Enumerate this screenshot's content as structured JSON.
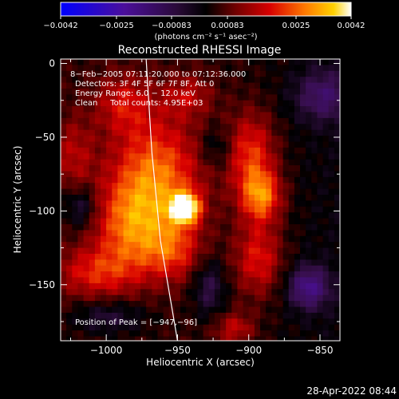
{
  "chart_data": {
    "type": "heatmap",
    "title": "Reconstructed RHESSI Image",
    "xlabel": "Heliocentric X (arcsec)",
    "ylabel": "Heliocentric Y (arcsec)",
    "xlim": [
      -1032,
      -836
    ],
    "ylim": [
      -188,
      3
    ],
    "x_ticks": [
      -1000,
      -950,
      -900,
      -850
    ],
    "x_tick_labels": [
      "−1000",
      "−950",
      "−900",
      "−850"
    ],
    "y_ticks": [
      0,
      -50,
      -100,
      -150
    ],
    "y_tick_labels": [
      "0",
      "−50",
      "−100",
      "−150"
    ],
    "colorbar": {
      "range": [
        -0.0042,
        0.0042
      ],
      "tick_labels": [
        "−0.0042",
        "−0.0025",
        "−0.00083",
        "0.00083",
        "0.0025",
        "0.0042"
      ],
      "units": "(photons cm⁻² s⁻¹ asec⁻²)"
    },
    "annotations": [
      "8−Feb−2005 07:11:20.000 to 07:12:36.000",
      "Detectors: 3F 4F 5F 6F 7F 8F, Att 0",
      "Energy Range: 6.0 − 12.0 keV",
      "Clean     Total counts: 4.95E+03"
    ],
    "peak_label": "Position of Peak = [−947,−96]",
    "peak": [
      -947,
      -96
    ],
    "limb_points": [
      [
        -972,
        3
      ],
      [
        -968,
        -60
      ],
      [
        -962,
        -120
      ],
      [
        -950,
        -188
      ]
    ],
    "blobs": [
      {
        "x": -947,
        "y": -96,
        "sx": 7,
        "sy": 7,
        "amp": 1.0
      },
      {
        "x": -967,
        "y": -75,
        "sx": 22,
        "sy": 28,
        "amp": 0.55
      },
      {
        "x": -985,
        "y": -110,
        "sx": 18,
        "sy": 22,
        "amp": 0.45
      },
      {
        "x": -955,
        "y": -125,
        "sx": 14,
        "sy": 14,
        "amp": 0.35
      },
      {
        "x": -1010,
        "y": -140,
        "sx": 20,
        "sy": 12,
        "amp": 0.35
      },
      {
        "x": -1025,
        "y": -60,
        "sx": 10,
        "sy": 18,
        "amp": 0.25
      },
      {
        "x": -990,
        "y": -25,
        "sx": 14,
        "sy": 14,
        "amp": 0.3
      },
      {
        "x": -945,
        "y": -20,
        "sx": 12,
        "sy": 10,
        "amp": 0.25
      },
      {
        "x": -900,
        "y": -60,
        "sx": 12,
        "sy": 20,
        "amp": 0.45
      },
      {
        "x": -893,
        "y": -88,
        "sx": 10,
        "sy": 12,
        "amp": 0.55
      },
      {
        "x": -895,
        "y": -130,
        "sx": 12,
        "sy": 18,
        "amp": 0.4
      },
      {
        "x": -912,
        "y": -178,
        "sx": 10,
        "sy": 8,
        "amp": 0.3
      },
      {
        "x": -860,
        "y": -150,
        "sx": 10,
        "sy": 10,
        "amp": -0.5
      },
      {
        "x": -850,
        "y": -20,
        "sx": 14,
        "sy": 12,
        "amp": -0.35
      },
      {
        "x": -1000,
        "y": -170,
        "sx": 18,
        "sy": 8,
        "amp": -0.25
      },
      {
        "x": -930,
        "y": -150,
        "sx": 8,
        "sy": 14,
        "amp": -0.3
      },
      {
        "x": -1020,
        "y": -95,
        "sx": 8,
        "sy": 10,
        "amp": -0.3
      },
      {
        "x": -925,
        "y": -55,
        "sx": 8,
        "sy": 10,
        "amp": -0.2
      }
    ]
  },
  "footer": {
    "timestamp": "28-Apr-2022 08:44"
  }
}
